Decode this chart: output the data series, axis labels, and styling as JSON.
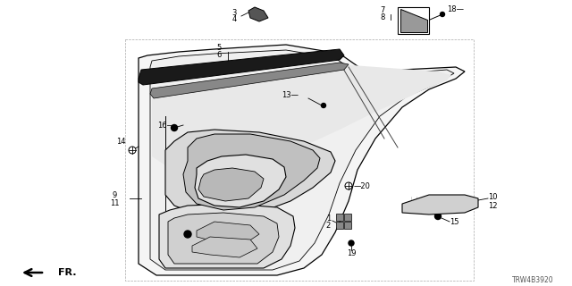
{
  "bg_color": "#ffffff",
  "diagram_code": "TRW4B3920",
  "fr_label": "FR.",
  "line_color": "#000000"
}
